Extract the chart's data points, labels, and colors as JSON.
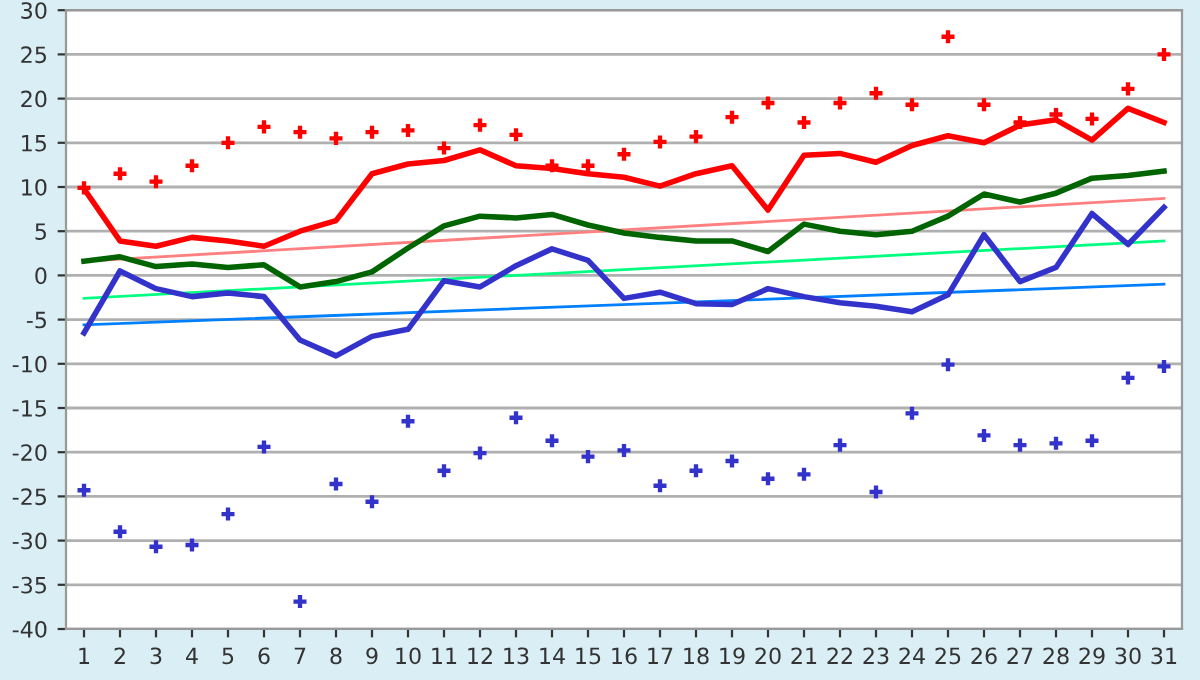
{
  "chart_data": {
    "type": "line",
    "categories": [
      "1",
      "2",
      "3",
      "4",
      "5",
      "6",
      "7",
      "8",
      "9",
      "10",
      "11",
      "12",
      "13",
      "14",
      "15",
      "16",
      "17",
      "18",
      "19",
      "20",
      "21",
      "22",
      "23",
      "24",
      "25",
      "26",
      "27",
      "28",
      "29",
      "30",
      "31"
    ],
    "ylim": [
      -40,
      30
    ],
    "yticks": [
      -40,
      -35,
      -30,
      -25,
      -20,
      -15,
      -10,
      -5,
      0,
      5,
      10,
      15,
      20,
      25,
      30
    ],
    "grid": "y",
    "marker": "none",
    "line_style": "solid",
    "series": [
      {
        "color": "#ff8080",
        "x": [
          "1",
          "31"
        ],
        "values": [
          1.6,
          8.7
        ]
      },
      {
        "color": "#00ff80",
        "x": [
          "1",
          "31"
        ],
        "values": [
          -2.6,
          3.9
        ]
      },
      {
        "color": "#0080ff",
        "x": [
          "1",
          "31"
        ],
        "values": [
          -5.6,
          -1.0
        ]
      },
      {
        "color": "#ff0000",
        "values": [
          9.8,
          3.9,
          3.3,
          4.3,
          3.9,
          3.3,
          5.0,
          6.2,
          11.5,
          12.6,
          13.0,
          14.2,
          12.4,
          12.1,
          11.5,
          11.1,
          10.1,
          11.5,
          12.4,
          7.4,
          13.6,
          13.8,
          12.8,
          14.7,
          15.8,
          15.0,
          17.0,
          17.6,
          15.3,
          18.9,
          17.3
        ]
      },
      {
        "color": "#006400",
        "values": [
          1.6,
          2.1,
          1.0,
          1.3,
          0.9,
          1.2,
          -1.3,
          -0.7,
          0.4,
          3.1,
          5.6,
          6.7,
          6.5,
          6.9,
          5.7,
          4.8,
          4.3,
          3.9,
          3.9,
          2.7,
          5.8,
          5.0,
          4.6,
          5.0,
          6.7,
          9.2,
          8.3,
          9.3,
          11.0,
          11.3,
          11.8
        ]
      },
      {
        "color": "#3333cc",
        "values": [
          -6.5,
          0.5,
          -1.5,
          -2.4,
          -2.0,
          -2.4,
          -7.3,
          -9.1,
          -6.9,
          -6.1,
          -0.6,
          -1.3,
          1.1,
          3.0,
          1.7,
          -2.6,
          -1.9,
          -3.2,
          -3.3,
          -1.5,
          -2.4,
          -3.1,
          -3.5,
          -4.1,
          -2.2,
          4.6,
          -0.7,
          0.9,
          7.0,
          3.5,
          7.7
        ]
      },
      {
        "type": "scatter",
        "marker": "cross",
        "color": "#ff0000",
        "values": [
          9.9,
          11.5,
          10.6,
          12.4,
          15.0,
          16.8,
          16.2,
          15.5,
          16.2,
          16.4,
          14.4,
          17.0,
          15.9,
          12.4,
          12.4,
          13.7,
          15.1,
          15.7,
          17.9,
          19.5,
          17.3,
          19.5,
          20.6,
          19.3,
          27.0,
          19.3,
          17.3,
          18.2,
          17.7,
          21.1,
          25.0
        ]
      },
      {
        "type": "scatter",
        "marker": "cross",
        "color": "#3333cc",
        "values": [
          -24.3,
          -29.0,
          -30.7,
          -30.5,
          -27.0,
          -19.4,
          -36.9,
          -23.6,
          -25.6,
          -16.5,
          -22.1,
          -20.1,
          -16.1,
          -18.7,
          -20.5,
          -19.8,
          -23.8,
          -22.1,
          -21.0,
          -23.0,
          -22.5,
          -19.2,
          -24.5,
          -15.6,
          -10.1,
          -18.1,
          -19.2,
          -19.0,
          -18.7,
          -11.6,
          -10.3
        ]
      }
    ]
  }
}
